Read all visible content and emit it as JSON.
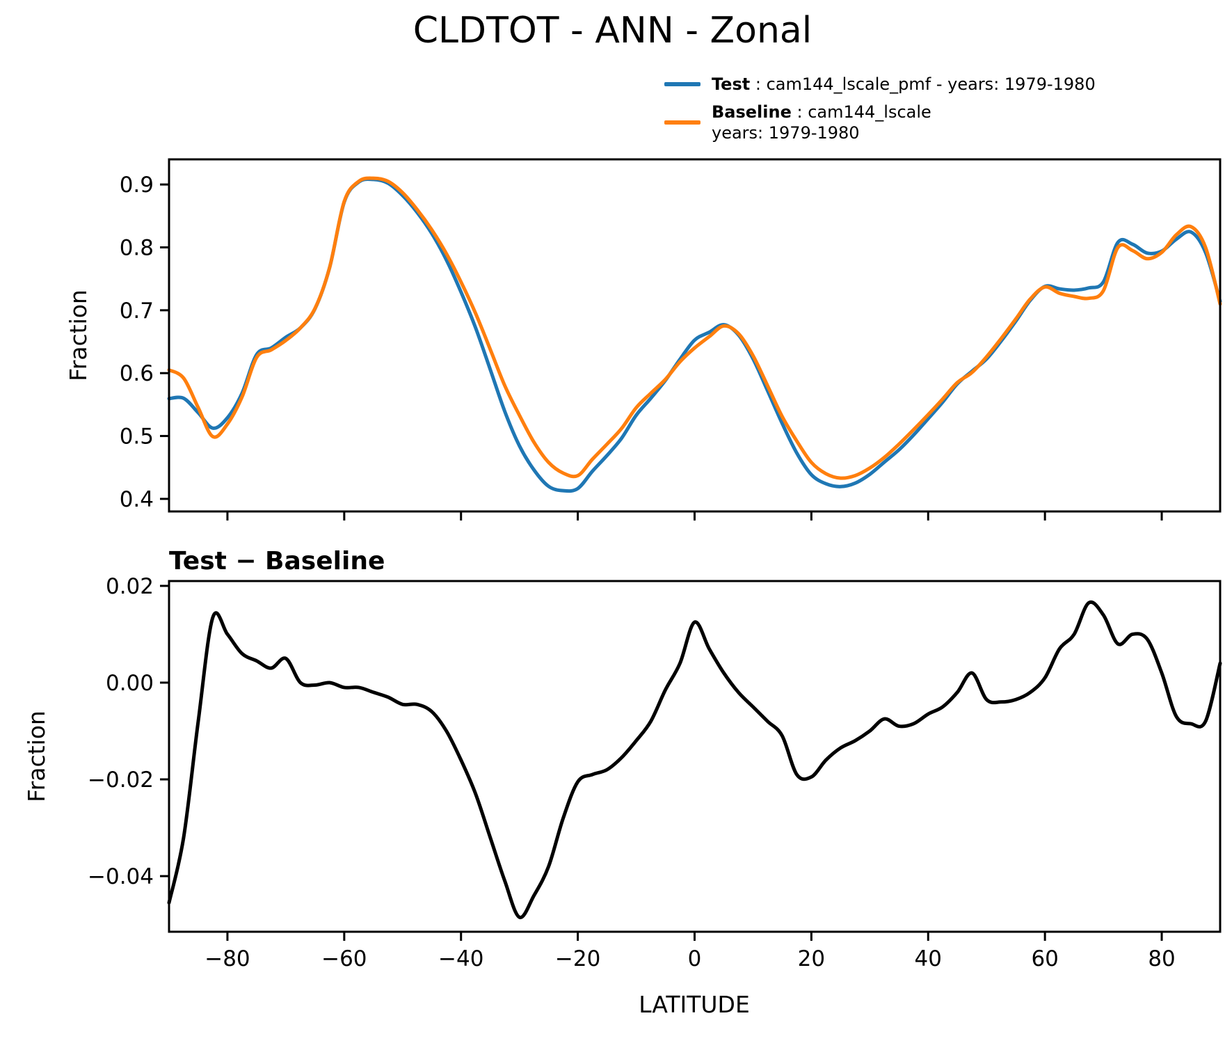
{
  "figure": {
    "title": "CLDTOT - ANN - Zonal",
    "diff_title": "Test − Baseline",
    "xlabel": "LATITUDE",
    "ylabel_top": "Fraction",
    "ylabel_bottom": "Fraction",
    "legend": {
      "test_label": "Test",
      "test_desc": " : cam144_lscale_pmf - years: 1979-1980",
      "baseline_label": "Baseline",
      "baseline_desc": " : cam144_lscale",
      "baseline_desc2": "years: 1979-1980",
      "test_color": "#1f77b4",
      "baseline_color": "#ff7f0e"
    },
    "colors": {
      "test": "#1f77b4",
      "baseline": "#ff7f0e",
      "diff": "#000000",
      "axis": "#000000"
    }
  },
  "chart_data": [
    {
      "type": "line",
      "title": "CLDTOT - ANN - Zonal",
      "ylabel": "Fraction",
      "xlabel": "",
      "legend_position": "upper-right-outside",
      "grid": false,
      "xlim": [
        -90,
        90
      ],
      "ylim": [
        0.38,
        0.94
      ],
      "yticks": [
        0.9,
        0.8,
        0.7,
        0.6,
        0.5,
        0.4
      ],
      "ytick_labels": [
        "0.9",
        "0.8",
        "0.7",
        "0.6",
        "0.5",
        "0.4"
      ],
      "xticks": [
        -80,
        -60,
        -40,
        -20,
        0,
        20,
        40,
        60,
        80
      ],
      "xtick_labels": [],
      "x": [
        -90,
        -87.5,
        -85,
        -82.5,
        -80,
        -77.5,
        -75,
        -72.5,
        -70,
        -67.5,
        -65,
        -62.5,
        -60,
        -57.5,
        -55,
        -52.5,
        -50,
        -47.5,
        -45,
        -42.5,
        -40,
        -37.5,
        -35,
        -32.5,
        -30,
        -27.5,
        -25,
        -22.5,
        -20,
        -17.5,
        -15,
        -12.5,
        -10,
        -7.5,
        -5,
        -2.5,
        0,
        2.5,
        5,
        7.5,
        10,
        12.5,
        15,
        17.5,
        20,
        22.5,
        25,
        27.5,
        30,
        32.5,
        35,
        37.5,
        40,
        42.5,
        45,
        47.5,
        50,
        52.5,
        55,
        57.5,
        60,
        62.5,
        65,
        67.5,
        70,
        72.5,
        75,
        77.5,
        80,
        82.5,
        85,
        87.5,
        90
      ],
      "series": [
        {
          "name": "Test : cam144_lscale_pmf - years: 1979-1980",
          "color": "#1f77b4",
          "values": [
            0.5595,
            0.56,
            0.537,
            0.5125,
            0.529,
            0.568,
            0.6295,
            0.64,
            0.657,
            0.672,
            0.7025,
            0.768,
            0.872,
            0.904,
            0.908,
            0.902,
            0.8825,
            0.8555,
            0.822,
            0.78,
            0.729,
            0.672,
            0.606,
            0.539,
            0.4845,
            0.446,
            0.42,
            0.413,
            0.4165,
            0.444,
            0.469,
            0.4965,
            0.533,
            0.56,
            0.5885,
            0.622,
            0.6525,
            0.665,
            0.677,
            0.661,
            0.623,
            0.572,
            0.52,
            0.473,
            0.4385,
            0.424,
            0.4195,
            0.425,
            0.439,
            0.4585,
            0.478,
            0.5015,
            0.5275,
            0.554,
            0.583,
            0.603,
            0.6225,
            0.651,
            0.6825,
            0.716,
            0.738,
            0.734,
            0.732,
            0.7355,
            0.745,
            0.808,
            0.805,
            0.791,
            0.794,
            0.813,
            0.8245,
            0.792,
            0.714
          ]
        },
        {
          "name": "Baseline : cam144_lscale years: 1979-1980",
          "color": "#ff7f0e",
          "values": [
            0.605,
            0.592,
            0.545,
            0.499,
            0.519,
            0.562,
            0.625,
            0.637,
            0.652,
            0.672,
            0.703,
            0.768,
            0.873,
            0.905,
            0.91,
            0.905,
            0.887,
            0.86,
            0.828,
            0.79,
            0.745,
            0.695,
            0.638,
            0.58,
            0.533,
            0.49,
            0.458,
            0.441,
            0.437,
            0.463,
            0.487,
            0.512,
            0.545,
            0.568,
            0.59,
            0.618,
            0.64,
            0.658,
            0.675,
            0.663,
            0.628,
            0.58,
            0.531,
            0.492,
            0.458,
            0.44,
            0.433,
            0.437,
            0.449,
            0.466,
            0.487,
            0.51,
            0.534,
            0.559,
            0.585,
            0.601,
            0.626,
            0.655,
            0.686,
            0.718,
            0.737,
            0.727,
            0.722,
            0.719,
            0.731,
            0.8,
            0.795,
            0.782,
            0.792,
            0.82,
            0.833,
            0.8,
            0.71
          ]
        }
      ]
    },
    {
      "type": "line",
      "title": "Test − Baseline",
      "ylabel": "Fraction",
      "xlabel": "LATITUDE",
      "grid": false,
      "xlim": [
        -90,
        90
      ],
      "ylim": [
        -0.0515,
        0.021
      ],
      "yticks": [
        0.02,
        0.0,
        -0.02,
        -0.04
      ],
      "ytick_labels": [
        "0.02",
        "0.00",
        "−0.02",
        "−0.04"
      ],
      "xticks": [
        -80,
        -60,
        -40,
        -20,
        0,
        20,
        40,
        60,
        80
      ],
      "xtick_labels": [
        "−80",
        "−60",
        "−40",
        "−20",
        "0",
        "20",
        "40",
        "60",
        "80"
      ],
      "x": [
        -90,
        -87.5,
        -85,
        -82.5,
        -80,
        -77.5,
        -75,
        -72.5,
        -70,
        -67.5,
        -65,
        -62.5,
        -60,
        -57.5,
        -55,
        -52.5,
        -50,
        -47.5,
        -45,
        -42.5,
        -40,
        -37.5,
        -35,
        -32.5,
        -30,
        -27.5,
        -25,
        -22.5,
        -20,
        -17.5,
        -15,
        -12.5,
        -10,
        -7.5,
        -5,
        -2.5,
        0,
        2.5,
        5,
        7.5,
        10,
        12.5,
        15,
        17.5,
        20,
        22.5,
        25,
        27.5,
        30,
        32.5,
        35,
        37.5,
        40,
        42.5,
        45,
        47.5,
        50,
        52.5,
        55,
        57.5,
        60,
        62.5,
        65,
        67.5,
        70,
        72.5,
        75,
        77.5,
        80,
        82.5,
        85,
        87.5,
        90
      ],
      "series": [
        {
          "name": "Test − Baseline",
          "color": "#000000",
          "values": [
            -0.0455,
            -0.032,
            -0.008,
            0.0135,
            0.01,
            0.006,
            0.0045,
            0.003,
            0.005,
            0.0,
            -0.0005,
            0.0,
            -0.001,
            -0.001,
            -0.002,
            -0.003,
            -0.0045,
            -0.0045,
            -0.006,
            -0.01,
            -0.016,
            -0.023,
            -0.032,
            -0.041,
            -0.0485,
            -0.044,
            -0.038,
            -0.028,
            -0.0205,
            -0.019,
            -0.018,
            -0.0155,
            -0.012,
            -0.008,
            -0.0015,
            0.004,
            0.0125,
            0.007,
            0.002,
            -0.002,
            -0.005,
            -0.008,
            -0.011,
            -0.019,
            -0.0195,
            -0.016,
            -0.0135,
            -0.012,
            -0.01,
            -0.0075,
            -0.009,
            -0.0085,
            -0.0065,
            -0.005,
            -0.002,
            0.002,
            -0.0035,
            -0.004,
            -0.0035,
            -0.002,
            0.001,
            0.007,
            0.01,
            0.0165,
            0.014,
            0.008,
            0.01,
            0.009,
            0.002,
            -0.007,
            -0.0085,
            -0.008,
            0.004
          ]
        }
      ]
    }
  ]
}
